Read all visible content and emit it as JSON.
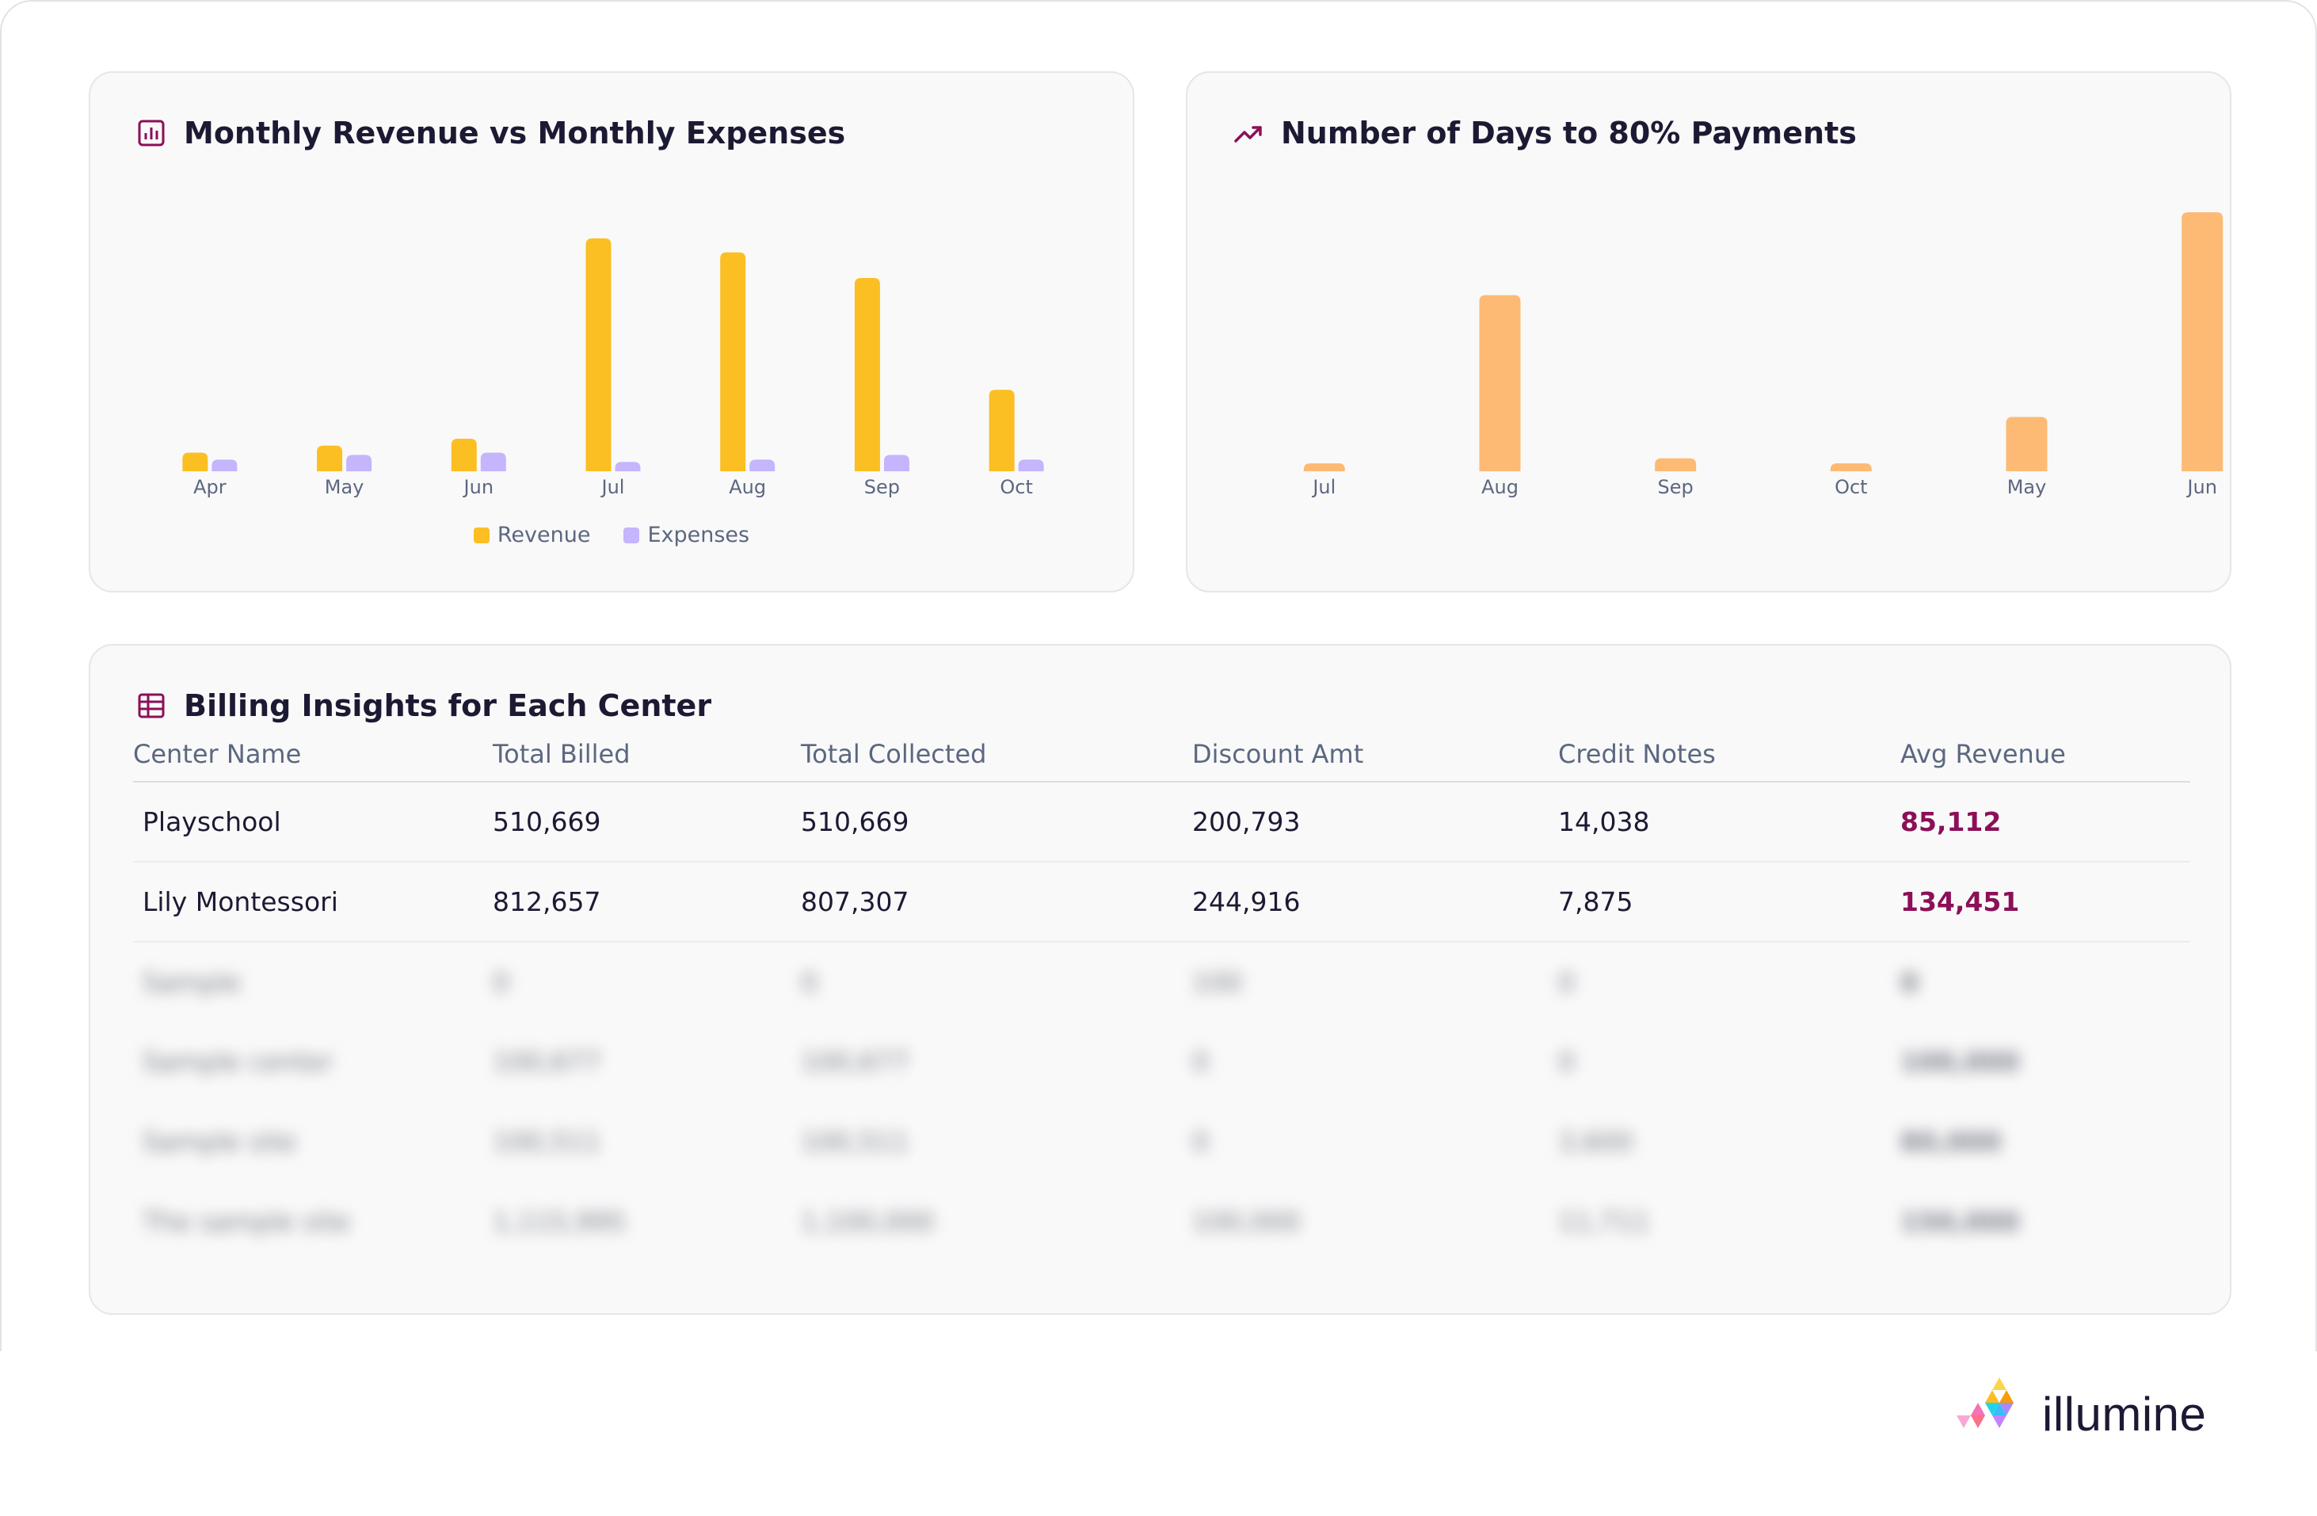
{
  "revenue_card": {
    "title": "Monthly Revenue vs Monthly Expenses",
    "icon": "bar-chart-icon"
  },
  "days_card": {
    "title": "Number of Days to 80% Payments",
    "icon": "trending-up-icon"
  },
  "billing_card": {
    "title": "Billing Insights for Each Center",
    "icon": "table-icon",
    "columns": [
      "Center Name",
      "Total Billed",
      "Total Collected",
      "Discount Amt",
      "Credit Notes",
      "Avg Revenue"
    ],
    "rows": [
      [
        "Playschool",
        "510,669",
        "510,669",
        "200,793",
        "14,038",
        "85,112"
      ],
      [
        "Lily Montessori",
        "812,657",
        "807,307",
        "244,916",
        "7,875",
        "134,451"
      ]
    ],
    "blurred_rows": [
      [
        "Sample",
        "0",
        "0",
        "100",
        "0",
        "0"
      ],
      [
        "Sample center",
        "100,677",
        "100,677",
        "0",
        "0",
        "100,000"
      ],
      [
        "Sample site",
        "100,511",
        "100,511",
        "0",
        "3,600",
        "80,000"
      ],
      [
        "The sample site",
        "1,115,995",
        "1,100,000",
        "100,000",
        "11,711",
        "150,000"
      ]
    ]
  },
  "brand": {
    "name": "illumine"
  },
  "colors": {
    "revenue": "#fbbf24",
    "expenses": "#c4b5fd",
    "days": "#fdba74",
    "accent": "#8b1058"
  },
  "chart_data": [
    {
      "type": "bar",
      "title": "Monthly Revenue vs Monthly Expenses",
      "categories": [
        "Apr",
        "May",
        "Jun",
        "Jul",
        "Aug",
        "Sep",
        "Oct"
      ],
      "series": [
        {
          "name": "Revenue",
          "values": [
            8,
            11,
            14,
            100,
            94,
            83,
            35
          ]
        },
        {
          "name": "Expenses",
          "values": [
            5,
            7,
            8,
            4,
            5,
            7,
            5
          ]
        }
      ],
      "ylim": [
        0,
        100
      ],
      "grid": false,
      "legend": "bottom-center"
    },
    {
      "type": "bar",
      "title": "Number of Days to 80% Payments",
      "categories": [
        "Jul",
        "Aug",
        "Sep",
        "Oct",
        "May",
        "Jun"
      ],
      "series": [
        {
          "name": "",
          "values": [
            3,
            68,
            5,
            3,
            21,
            100
          ]
        }
      ],
      "ylim": [
        0,
        100
      ],
      "grid": false,
      "legend": "none"
    }
  ]
}
